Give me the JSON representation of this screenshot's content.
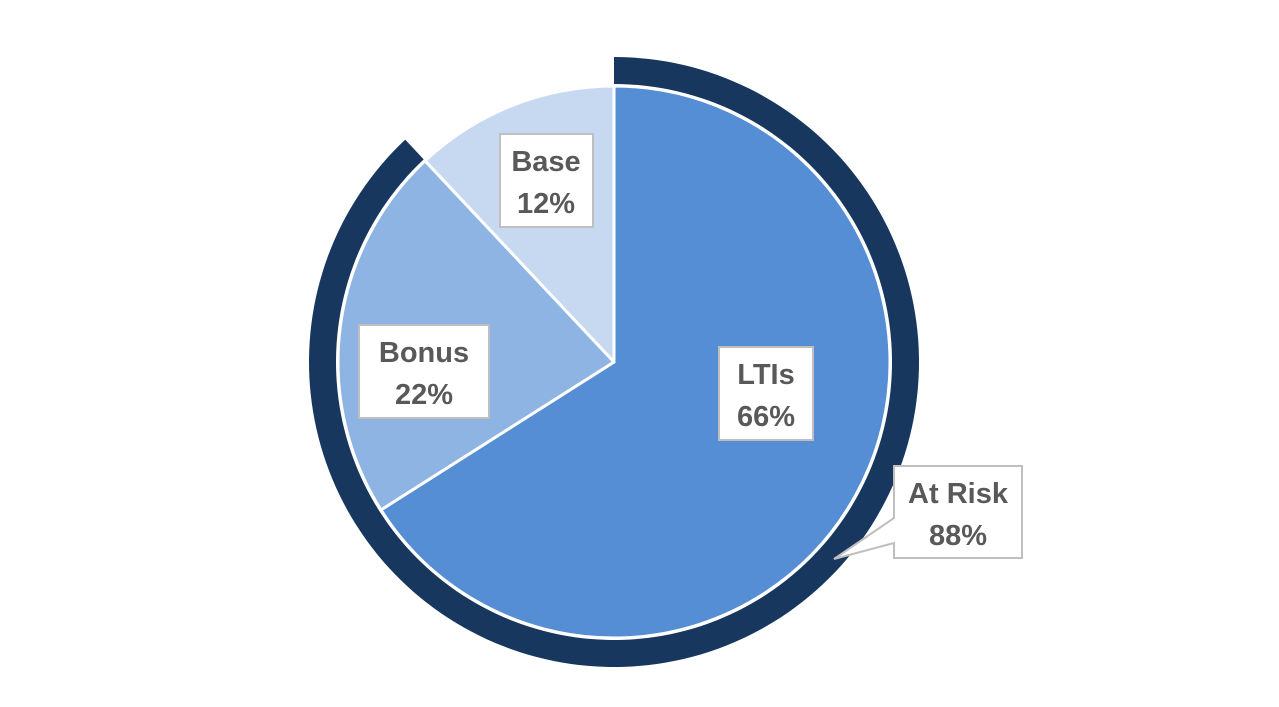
{
  "chart_data": {
    "type": "pie",
    "slices": [
      {
        "name": "LTIs",
        "value": 66,
        "label": "66%",
        "color": "#558ed5"
      },
      {
        "name": "Bonus",
        "value": 22,
        "label": "22%",
        "color": "#8eb4e3"
      },
      {
        "name": "Base",
        "value": 12,
        "label": "12%",
        "color": "#c6d9f1"
      }
    ],
    "outer_ring": {
      "name": "At Risk",
      "value": 88,
      "label": "88%",
      "color": "#17375e"
    },
    "slice_border_color": "#ffffff",
    "label_box_border_color": "#bfbfbf",
    "label_text_color": "#595959"
  }
}
